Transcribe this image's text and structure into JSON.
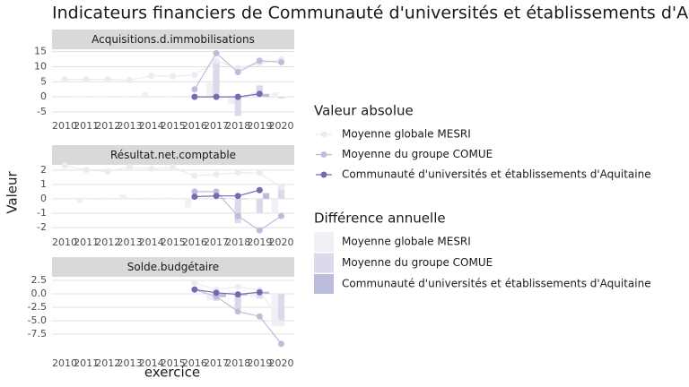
{
  "title": "Indicateurs financiers de Communauté d'universités et établissements d'Aquitaine",
  "x_label": "exercice",
  "y_label": "Valeur",
  "legend_titles": [
    "Valeur absolue",
    "Différence annuelle"
  ],
  "chart_data": [
    {
      "type": "combo",
      "strip": "Acquisitions.d.immobilisations",
      "x": [
        2010,
        2011,
        2012,
        2013,
        2014,
        2015,
        2016,
        2017,
        2018,
        2019,
        2020
      ],
      "xlim": [
        2009.42,
        2020.6
      ],
      "xticks": [
        2010,
        2011,
        2012,
        2013,
        2014,
        2015,
        2016,
        2017,
        2018,
        2019,
        2020
      ],
      "ylim": [
        -7.1,
        15.5
      ],
      "yticks": [
        -5,
        0,
        5,
        10,
        15
      ],
      "grid": true,
      "series": [
        {
          "name": "Moyenne globale MESRI",
          "color": "#eceaf3",
          "values": [
            5.8,
            5.8,
            5.8,
            5.5,
            7,
            6.8,
            7.3,
            12,
            9.5,
            11,
            12.5
          ]
        },
        {
          "name": "Moyenne du groupe COMUE",
          "color": "#bcbddc",
          "values": [
            null,
            null,
            null,
            null,
            null,
            null,
            2.5,
            14.5,
            8.2,
            12,
            11.5
          ]
        },
        {
          "name": "Communauté d'universités et établissements d'Aquitaine",
          "color": "#756bb1",
          "values": [
            null,
            null,
            null,
            null,
            null,
            null,
            0,
            0,
            0,
            1,
            null
          ]
        }
      ],
      "diff_series": [
        {
          "name": "Moyenne globale MESRI",
          "color": "#f2f0f7",
          "values": [
            null,
            0,
            0,
            -0.3,
            1.5,
            -0.2,
            0.5,
            4.7,
            -2.5,
            1.5,
            1.5
          ]
        },
        {
          "name": "Moyenne du groupe COMUE",
          "color": "#dadaeb",
          "values": [
            null,
            null,
            null,
            null,
            null,
            null,
            null,
            12,
            -6.3,
            3.8,
            -0.5
          ]
        },
        {
          "name": "Communauté d'universités et établissements d'Aquitaine",
          "color": "#bcbddc",
          "values": [
            null,
            null,
            null,
            null,
            null,
            null,
            null,
            0,
            0,
            1,
            null
          ]
        }
      ]
    },
    {
      "type": "combo",
      "strip": "Résultat.net.comptable",
      "x": [
        2010,
        2011,
        2012,
        2013,
        2014,
        2015,
        2016,
        2017,
        2018,
        2019,
        2020
      ],
      "xlim": [
        2009.42,
        2020.6
      ],
      "xticks": [
        2010,
        2011,
        2012,
        2013,
        2014,
        2015,
        2016,
        2017,
        2018,
        2019,
        2020
      ],
      "ylim": [
        -2.5,
        2.3
      ],
      "yticks": [
        -2,
        -1,
        0,
        1,
        2
      ],
      "grid": true,
      "series": [
        {
          "name": "Moyenne globale MESRI",
          "color": "#eceaf3",
          "values": [
            2.3,
            2.0,
            1.9,
            2.2,
            2.1,
            2.2,
            1.6,
            1.7,
            1.8,
            1.8,
            0.8
          ]
        },
        {
          "name": "Moyenne du groupe COMUE",
          "color": "#bcbddc",
          "values": [
            null,
            null,
            null,
            null,
            null,
            null,
            0.5,
            0.5,
            -1.2,
            -2.2,
            -1.2
          ]
        },
        {
          "name": "Communauté d'universités et établissements d'Aquitaine",
          "color": "#756bb1",
          "values": [
            null,
            null,
            null,
            null,
            null,
            null,
            0.15,
            0.2,
            0.2,
            0.6,
            null
          ]
        }
      ],
      "diff_series": [
        {
          "name": "Moyenne globale MESRI",
          "color": "#f2f0f7",
          "values": [
            null,
            -0.3,
            -0.1,
            0.3,
            -0.1,
            0.1,
            -0.6,
            0.1,
            0.1,
            0,
            -1.0
          ]
        },
        {
          "name": "Moyenne du groupe COMUE",
          "color": "#dadaeb",
          "values": [
            null,
            null,
            null,
            null,
            null,
            null,
            null,
            0,
            -1.7,
            -1.0,
            1.0
          ]
        },
        {
          "name": "Communauté d'universités et établissements d'Aquitaine",
          "color": "#bcbddc",
          "values": [
            null,
            null,
            null,
            null,
            null,
            null,
            null,
            0.05,
            0,
            0.4,
            null
          ]
        }
      ]
    },
    {
      "type": "combo",
      "strip": "Solde.budgétaire",
      "x": [
        2010,
        2011,
        2012,
        2013,
        2014,
        2015,
        2016,
        2017,
        2018,
        2019,
        2020
      ],
      "xlim": [
        2009.42,
        2020.6
      ],
      "xticks": [
        2010,
        2011,
        2012,
        2013,
        2014,
        2015,
        2016,
        2017,
        2018,
        2019,
        2020
      ],
      "ylim": [
        -11.5,
        3.0
      ],
      "yticks": [
        {
          "value": -7.5,
          "label": "-7.5"
        },
        {
          "value": -5,
          "label": "-5.0"
        },
        {
          "value": -2.5,
          "label": "-2.5"
        },
        {
          "value": 0,
          "label": "0.0"
        },
        {
          "value": 2.5,
          "label": "2.5"
        }
      ],
      "grid": true,
      "series": [
        {
          "name": "Moyenne globale MESRI",
          "color": "#eceaf3",
          "values": [
            null,
            null,
            null,
            null,
            null,
            null,
            2,
            0.8,
            1.3,
            0.7,
            -5.5
          ]
        },
        {
          "name": "Moyenne du groupe COMUE",
          "color": "#bcbddc",
          "values": [
            null,
            null,
            null,
            null,
            null,
            null,
            0.8,
            -0.5,
            -3.3,
            -4.2,
            -9.3
          ]
        },
        {
          "name": "Communauté d'universités et établissements d'Aquitaine",
          "color": "#756bb1",
          "values": [
            null,
            null,
            null,
            null,
            null,
            null,
            0.8,
            0.2,
            -0.1,
            0.3,
            null
          ]
        }
      ],
      "diff_series": [
        {
          "name": "Moyenne globale MESRI",
          "color": "#f2f0f7",
          "values": [
            null,
            null,
            null,
            null,
            null,
            null,
            null,
            -1.2,
            0.5,
            -0.6,
            -6
          ]
        },
        {
          "name": "Moyenne du groupe COMUE",
          "color": "#dadaeb",
          "values": [
            null,
            null,
            null,
            null,
            null,
            null,
            null,
            -1.3,
            -2.8,
            -0.9,
            -5.1
          ]
        },
        {
          "name": "Communauté d'universités et établissements d'Aquitaine",
          "color": "#bcbddc",
          "values": [
            null,
            null,
            null,
            null,
            null,
            null,
            null,
            -0.6,
            -0.3,
            0.4,
            null
          ]
        }
      ]
    }
  ]
}
